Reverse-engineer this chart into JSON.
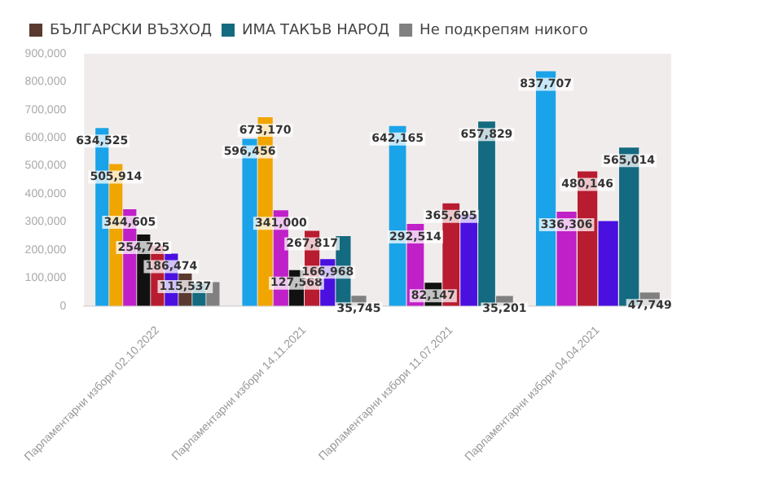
{
  "chart_data": {
    "type": "bar",
    "categories": [
      "Парламентарни избори 02.10.2022",
      "Парламентарни избори 14.11.2021",
      "Парламентарни избори 11.07.2021",
      "Парламентарни избори 04.04.2021"
    ],
    "series": [
      {
        "color": "#1aa3e8",
        "values": [
          634525,
          596456,
          642165,
          837707
        ],
        "value_labels": [
          "634,525",
          "596,456",
          "642,165",
          "837,707"
        ]
      },
      {
        "color": "#f0a500",
        "values": [
          505914,
          673170,
          null,
          null
        ],
        "value_labels": [
          "505,914",
          "673,170",
          null,
          null
        ]
      },
      {
        "color": "#c020c8",
        "values": [
          344605,
          341000,
          292514,
          336306
        ],
        "value_labels": [
          "344,605",
          "341,000",
          "292,514",
          "336,306"
        ]
      },
      {
        "color": "#111111",
        "values": [
          254725,
          127568,
          82147,
          null
        ],
        "value_labels": [
          "254,725",
          "127,568",
          "82,147",
          null
        ]
      },
      {
        "color": "#b81c30",
        "values": [
          215000,
          267817,
          365695,
          480146
        ],
        "value_labels": [
          null,
          "267,817",
          "365,695",
          "480,146"
        ]
      },
      {
        "color": "#4a10e0",
        "values": [
          186474,
          166968,
          326000,
          303000
        ],
        "value_labels": [
          "186,474",
          "166,968",
          null,
          null
        ]
      },
      {
        "name": "БЪЛГАРСКИ ВЪЗХОД",
        "color": "#5a3a30",
        "values": [
          115537,
          null,
          null,
          null
        ],
        "value_labels": [
          "115,537",
          null,
          null,
          null
        ]
      },
      {
        "name": "ИМА ТАКЪВ НАРОД",
        "color": "#146a80",
        "values": [
          80000,
          249000,
          657829,
          565014
        ],
        "value_labels": [
          null,
          null,
          "657,829",
          "565,014"
        ]
      },
      {
        "name": "Не подкрепям никого",
        "color": "#808080",
        "values": [
          85000,
          35745,
          35201,
          47749
        ],
        "value_labels": [
          null,
          "35,745",
          "35,201",
          "47,749"
        ]
      }
    ],
    "ylim": [
      0,
      900000
    ],
    "yticks": [
      0,
      {
        "value": 100000,
        "label": "100,000"
      },
      {
        "value": 200000,
        "label": "200,000"
      },
      {
        "value": 300000,
        "label": "300,000"
      },
      {
        "value": 400000,
        "label": "400,000"
      },
      {
        "value": 500000,
        "label": "500,000"
      },
      {
        "value": 600000,
        "label": "600,000"
      },
      {
        "value": 700000,
        "label": "700,000"
      },
      {
        "value": 800000,
        "label": "800,000"
      },
      {
        "value": 900000,
        "label": "900,000"
      }
    ],
    "grid": false,
    "legend": "top left"
  }
}
